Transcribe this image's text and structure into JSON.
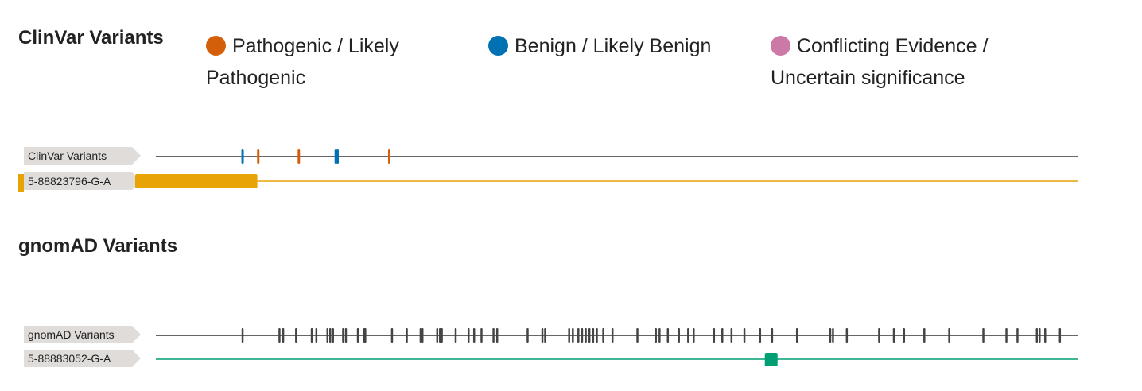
{
  "clinvar": {
    "title": "ClinVar Variants",
    "legend": [
      {
        "label": "Pathogenic / Likely Pathogenic",
        "color": "#d35f0a"
      },
      {
        "label": "Benign / Likely Benign",
        "color": "#0072b2"
      },
      {
        "label": "Conflicting Evidence / Uncertain significance",
        "color": "#cc79a7"
      }
    ],
    "track_label": "ClinVar Variants",
    "variant_label": "5-88823796-G-A",
    "variant_color": "#e8a407",
    "variant_position": 0.11,
    "markers": [
      {
        "pos": 0.094,
        "cls": "benign"
      },
      {
        "pos": 0.111,
        "cls": "pathogenic"
      },
      {
        "pos": 0.155,
        "cls": "pathogenic"
      },
      {
        "pos": 0.195,
        "cls": "benign"
      },
      {
        "pos": 0.197,
        "cls": "benign"
      },
      {
        "pos": 0.253,
        "cls": "pathogenic"
      }
    ]
  },
  "gnomad": {
    "title": "gnomAD Variants",
    "track_label": "gnomAD Variants",
    "variant_label": "5-88883052-G-A",
    "variant_color": "#009e73",
    "variant_position": 0.667,
    "markers": [
      0.094,
      0.134,
      0.138,
      0.152,
      0.169,
      0.174,
      0.186,
      0.189,
      0.192,
      0.203,
      0.206,
      0.219,
      0.226,
      0.227,
      0.256,
      0.272,
      0.287,
      0.289,
      0.305,
      0.308,
      0.31,
      0.325,
      0.339,
      0.345,
      0.353,
      0.366,
      0.37,
      0.403,
      0.419,
      0.422,
      0.448,
      0.452,
      0.458,
      0.462,
      0.466,
      0.47,
      0.474,
      0.478,
      0.485,
      0.495,
      0.522,
      0.542,
      0.546,
      0.555,
      0.567,
      0.577,
      0.583,
      0.605,
      0.614,
      0.624,
      0.638,
      0.655,
      0.668,
      0.695,
      0.731,
      0.734,
      0.749,
      0.784,
      0.8,
      0.811,
      0.833,
      0.86,
      0.897,
      0.922,
      0.934,
      0.955,
      0.958,
      0.964,
      0.98
    ]
  },
  "colors": {
    "pathogenic": "#d35f0a",
    "benign": "#0072b2",
    "conflicting": "#cc79a7",
    "neutral_marker": "#444444",
    "axis_line": "#333333"
  }
}
